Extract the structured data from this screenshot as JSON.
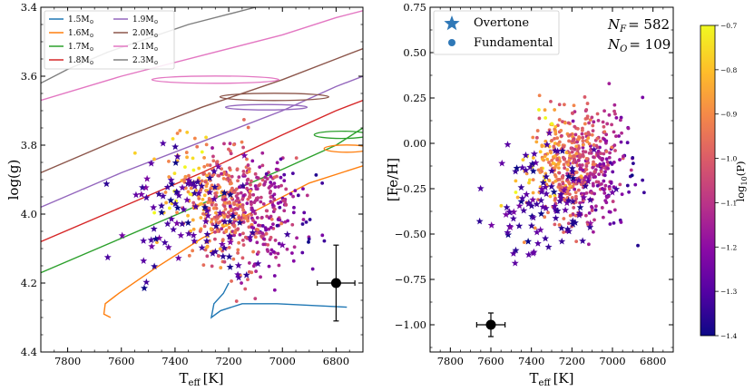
{
  "chart_data": [
    {
      "type": "scatter",
      "panel": "left",
      "title": "",
      "xlabel": "T",
      "xlabel_sub": "eff",
      "xlabel_unit": "[K]",
      "ylabel": "log(g)",
      "xlim": [
        7900,
        6700
      ],
      "ylim": [
        4.4,
        3.4
      ],
      "xticks": [
        7800,
        7600,
        7400,
        7200,
        7000,
        6800
      ],
      "yticks": [
        3.4,
        3.6,
        3.8,
        4.0,
        4.2,
        4.4
      ],
      "ytick_labels": [
        "3.4",
        "3.6",
        "3.8",
        "4.0",
        "4.2",
        "4.4"
      ],
      "legend": {
        "placement": "top-left",
        "entries": [
          {
            "label": "1.5M",
            "sub": "⊙",
            "color": "#1f77b4"
          },
          {
            "label": "1.6M",
            "sub": "⊙",
            "color": "#ff7f0e"
          },
          {
            "label": "1.7M",
            "sub": "⊙",
            "color": "#2ca02c"
          },
          {
            "label": "1.8M",
            "sub": "⊙",
            "color": "#d62728"
          },
          {
            "label": "1.9M",
            "sub": "⊙",
            "color": "#9467bd"
          },
          {
            "label": "2.0M",
            "sub": "⊙",
            "color": "#8c564b"
          },
          {
            "label": "2.1M",
            "sub": "⊙",
            "color": "#e377c2"
          },
          {
            "label": "2.3M",
            "sub": "⊙",
            "color": "#7f7f7f"
          }
        ]
      },
      "tracks": [
        {
          "mass": "1.5M",
          "color": "#1f77b4",
          "points": [
            [
              6760,
              4.27
            ],
            [
              7020,
              4.26
            ],
            [
              7150,
              4.26
            ],
            [
              7230,
              4.28
            ],
            [
              7265,
              4.3
            ],
            [
              7255,
              4.26
            ],
            [
              7220,
              4.23
            ],
            [
              7200,
              4.2
            ]
          ]
        },
        {
          "mass": "1.6M",
          "color": "#ff7f0e",
          "points": [
            [
              7640,
              4.3
            ],
            [
              7665,
              4.29
            ],
            [
              7660,
              4.26
            ],
            [
              7610,
              4.23
            ],
            [
              7480,
              4.16
            ],
            [
              7300,
              4.07
            ],
            [
              7100,
              3.99
            ],
            [
              6900,
              3.91
            ],
            [
              6700,
              3.86
            ]
          ]
        },
        {
          "mass": "1.7M",
          "color": "#2ca02c",
          "points": [
            [
              7900,
              4.17
            ],
            [
              7600,
              4.07
            ],
            [
              7300,
              3.97
            ],
            [
              7000,
              3.87
            ],
            [
              6800,
              3.8
            ],
            [
              6700,
              3.75
            ]
          ]
        },
        {
          "mass": "1.8M",
          "color": "#d62728",
          "points": [
            [
              7900,
              4.08
            ],
            [
              7600,
              3.98
            ],
            [
              7300,
              3.88
            ],
            [
              7000,
              3.77
            ],
            [
              6800,
              3.7
            ],
            [
              6700,
              3.67
            ]
          ]
        },
        {
          "mass": "1.9M",
          "color": "#9467bd",
          "points": [
            [
              7900,
              3.98
            ],
            [
              7600,
              3.88
            ],
            [
              7300,
              3.79
            ],
            [
              7000,
              3.7
            ],
            [
              6800,
              3.63
            ],
            [
              6700,
              3.6
            ]
          ]
        },
        {
          "mass": "2.0M",
          "color": "#8c564b",
          "points": [
            [
              7900,
              3.88
            ],
            [
              7600,
              3.78
            ],
            [
              7300,
              3.69
            ],
            [
              7000,
              3.61
            ],
            [
              6800,
              3.55
            ],
            [
              6700,
              3.52
            ]
          ]
        },
        {
          "mass": "2.1M",
          "color": "#e377c2",
          "points": [
            [
              7900,
              3.67
            ],
            [
              7600,
              3.6
            ],
            [
              7300,
              3.54
            ],
            [
              7000,
              3.48
            ],
            [
              6800,
              3.43
            ],
            [
              6700,
              3.41
            ]
          ]
        },
        {
          "mass": "2.3M",
          "color": "#7f7f7f",
          "points": [
            [
              7900,
              3.62
            ],
            [
              7800,
              3.58
            ],
            [
              7650,
              3.53
            ],
            [
              7500,
              3.49
            ],
            [
              7350,
              3.45
            ],
            [
              7200,
              3.42
            ],
            [
              7100,
              3.4
            ]
          ]
        }
      ],
      "error_bar": {
        "x": 6800,
        "y": 4.2,
        "xerr": 70,
        "yerr": 0.11
      },
      "series": [
        {
          "name": "Overtone",
          "marker": "star",
          "count": 109
        },
        {
          "name": "Fundamental",
          "marker": "circle",
          "count": 582
        }
      ]
    },
    {
      "type": "scatter",
      "panel": "right",
      "title": "",
      "xlabel": "T",
      "xlabel_sub": "eff",
      "xlabel_unit": "[K]",
      "ylabel": "[Fe/H]",
      "xlim": [
        7900,
        6700
      ],
      "ylim": [
        -1.15,
        0.75
      ],
      "xticks": [
        7800,
        7600,
        7400,
        7200,
        7000,
        6800
      ],
      "yticks": [
        0.75,
        0.5,
        0.25,
        0.0,
        -0.25,
        -0.5,
        -0.75,
        -1.0
      ],
      "ytick_labels": [
        "0.75",
        "0.50",
        "0.25",
        "0.00",
        "−0.25",
        "−0.50",
        "−0.75",
        "−1.00"
      ],
      "legend": {
        "placement": "top-left",
        "entries": [
          {
            "label": "Overtone",
            "marker": "star",
            "color": "#2f78b7"
          },
          {
            "label": "Fundamental",
            "marker": "circle",
            "color": "#2f78b7"
          }
        ]
      },
      "counts": {
        "nf_label": "N",
        "nf_sub": "F",
        "nf_value": "= 582",
        "no_label": "N",
        "no_sub": "O",
        "no_value": "= 109"
      },
      "error_bar": {
        "x": 7600,
        "y": -1.0,
        "xerr": 70,
        "yerr": 0.065
      }
    }
  ],
  "colorbar": {
    "label": "log",
    "label_sub": "10",
    "label_suffix": "(P)",
    "range": [
      -1.4,
      -0.7
    ],
    "ticks": [
      -0.7,
      -0.8,
      -0.9,
      -1.0,
      -1.1,
      -1.2,
      -1.3,
      -1.4
    ],
    "tick_labels": [
      "−0.7",
      "−0.8",
      "−0.9",
      "−1.0",
      "−1.1",
      "−1.2",
      "−1.3",
      "−1.4"
    ],
    "colormap": [
      "#0d0887",
      "#5302a3",
      "#8b0aa5",
      "#b83289",
      "#db5c68",
      "#f48849",
      "#febd2a",
      "#f0f921"
    ]
  }
}
